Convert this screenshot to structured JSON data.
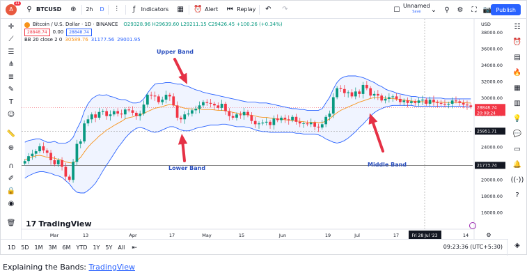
{
  "toolbar": {
    "avatar_letter": "A",
    "avatar_badge": "11",
    "symbol": "BTCUSD",
    "interval": "2h",
    "interval_type": "D",
    "indicators_label": "Indicators",
    "alert_label": "Alert",
    "replay_label": "Replay",
    "layout_name": "Unnamed",
    "layout_sub": "Save",
    "publish_label": "Publish"
  },
  "legend": {
    "title": "Bitcoin / U.S. Dollar · 1D · BINANCE",
    "ohlc": "O29328.96  H29639.60  L29211.15  C29426.45  +100.26 (+0.34%)",
    "bid": "28848.74",
    "spread": "0.00",
    "ask": "28848.74",
    "indicator_name": "BB 20 close 2 0",
    "bb_basis": "30589.76",
    "bb_upper": "31177.56",
    "bb_lower": "29001.95"
  },
  "annotations": {
    "upper": "Upper Band",
    "lower": "Lower Band",
    "middle": "Middle Band"
  },
  "price_axis": {
    "currency": "USD",
    "ticks": [
      "38000.00",
      "36000.00",
      "34000.00",
      "32000.00",
      "30000.00",
      "28000.00",
      "26000.00",
      "24000.00",
      "22000.00",
      "20000.00",
      "18000.00",
      "16000.00"
    ],
    "last_price": "28848.74",
    "last_countdown": "20:08:24",
    "crosshair_price": "25951.71",
    "line_price": "21773.74"
  },
  "time_axis": {
    "labels": [
      "Mar",
      "13",
      "Apr",
      "17",
      "May",
      "15",
      "Jun",
      "19",
      "Jul",
      "17",
      "14"
    ],
    "crosshair_date": "Fri 28 Jul '23"
  },
  "bottom": {
    "ranges": [
      "1D",
      "5D",
      "1M",
      "3M",
      "6M",
      "YTD",
      "1Y",
      "5Y",
      "All"
    ],
    "clock": "09:23:36 (UTC+5:30)"
  },
  "brand": "TradingView",
  "caption": {
    "text": "Explaining the Bands: ",
    "link": "TradingView"
  },
  "colors": {
    "up": "#089981",
    "down": "#f23645",
    "band": "#2962ff",
    "basis": "#f7931a",
    "accent": "#2962ff"
  },
  "chart_data": {
    "type": "candlestick",
    "title": "Bitcoin / U.S. Dollar · 1D · BINANCE",
    "ylim": [
      15000,
      39000
    ],
    "indicator": "BB 20 close 2 0",
    "series": [
      {
        "name": "close",
        "values": [
          22300,
          22900,
          23200,
          23500,
          24100,
          23600,
          23300,
          22400,
          21900,
          22400,
          21600,
          20400,
          20000,
          22200,
          24400,
          24700,
          26900,
          27400,
          28000,
          27600,
          28300,
          28400,
          27800,
          28000,
          28400,
          28100,
          28000,
          28600,
          28500,
          28200,
          27800,
          28100,
          29200,
          30400,
          30300,
          30200,
          29500,
          29800,
          30400,
          30200,
          29100,
          27600,
          27400,
          28000,
          28100,
          28500,
          28700,
          29100,
          29500,
          29400,
          29300,
          29100,
          28800,
          29300,
          28400,
          27800,
          27600,
          28000,
          27900,
          28300,
          27900,
          27200,
          26800,
          26900,
          27000,
          27100,
          26700,
          27500,
          27300,
          27600,
          27400,
          27300,
          27700,
          27100,
          26900,
          26900,
          26800,
          27000,
          26500,
          26400,
          26800,
          27700,
          28100,
          30100,
          31200,
          31100,
          30600,
          30700,
          30200,
          30800,
          30500,
          31600,
          31200,
          30300,
          30500,
          30300,
          29700,
          29900,
          30100,
          30200,
          29900,
          29500,
          29700,
          29400,
          29600,
          29400,
          29700,
          29800,
          29300,
          29800,
          29500,
          29400,
          29300,
          29200,
          29300,
          29700,
          29600,
          29400,
          29200,
          29100,
          28900
        ]
      },
      {
        "name": "BB upper",
        "values": [
          24600,
          24800,
          24900,
          25000,
          25000,
          24800,
          24600,
          24600,
          24700,
          24500,
          24500,
          24500,
          24700,
          25200,
          26200,
          27100,
          28400,
          29300,
          29900,
          30200,
          30400,
          30300,
          30400,
          30200,
          30100,
          29900,
          29800,
          29800,
          29600,
          29400,
          29400,
          29500,
          29900,
          30600,
          31200,
          31700,
          31800,
          31800,
          31900,
          31900,
          31800,
          31700,
          31700,
          31500,
          31400,
          31200,
          31000,
          30900,
          30700,
          30600,
          30500,
          30400,
          30300,
          30200,
          30100,
          30000,
          29900,
          29800,
          29700,
          29600,
          29500,
          29500,
          29500,
          29400,
          29400,
          29400,
          29300,
          29200,
          29100,
          29000,
          28900,
          28800,
          28700,
          28700,
          28600,
          28600,
          28500,
          28500,
          28500,
          28500,
          28700,
          29400,
          30100,
          31100,
          31900,
          32400,
          32600,
          32700,
          32700,
          32700,
          32600,
          32500,
          32300,
          32100,
          31900,
          31600,
          31400,
          31100,
          30900,
          30800,
          30600,
          30500,
          30400,
          30300,
          30200,
          30200,
          30100,
          30100,
          30000,
          30000,
          30000,
          30000,
          30000,
          29900,
          29900,
          29900,
          29900,
          29900,
          29900,
          29900,
          29900
        ]
      },
      {
        "name": "BB lower",
        "values": [
          20200,
          20500,
          20700,
          20900,
          21000,
          21000,
          20900,
          20800,
          20600,
          20500,
          20300,
          19900,
          19500,
          18900,
          18500,
          18400,
          18400,
          18700,
          19100,
          19600,
          20300,
          21100,
          21800,
          22500,
          23200,
          23900,
          24500,
          25100,
          25600,
          26000,
          26300,
          26400,
          26300,
          26100,
          25900,
          25800,
          25900,
          26100,
          26300,
          26500,
          26500,
          26300,
          26100,
          26000,
          26000,
          26100,
          26300,
          26400,
          26500,
          26600,
          26700,
          26700,
          26700,
          26800,
          26800,
          26700,
          26600,
          26500,
          26500,
          26500,
          26400,
          26300,
          26100,
          26000,
          25900,
          25900,
          25800,
          25800,
          25800,
          25800,
          25800,
          25800,
          25800,
          25700,
          25700,
          25600,
          25600,
          25600,
          25600,
          25500,
          25300,
          25000,
          24800,
          24600,
          24500,
          24600,
          24800,
          25100,
          25500,
          25900,
          26400,
          26800,
          27300,
          27800,
          28200,
          28500,
          28700,
          28900,
          29000,
          29100,
          29100,
          29100,
          29100,
          29100,
          29100,
          29000,
          29000,
          29000,
          29000,
          29000,
          29000,
          29000,
          29000,
          29000,
          29000,
          29000,
          29000,
          29000,
          29000,
          28900,
          28900
        ]
      }
    ],
    "lines": {
      "upper": "Upper Band",
      "basis": "Middle Band",
      "lower": "Lower Band"
    }
  }
}
